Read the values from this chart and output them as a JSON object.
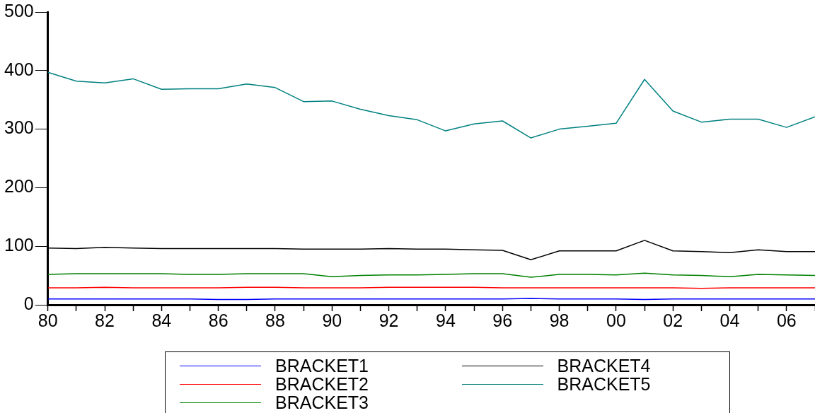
{
  "chart_data": {
    "type": "line",
    "categories": [
      "80",
      null,
      "82",
      null,
      "84",
      null,
      "86",
      null,
      "88",
      null,
      "90",
      null,
      "92",
      null,
      "94",
      null,
      "96",
      null,
      "98",
      null,
      "00",
      null,
      "02",
      null,
      "04",
      null,
      "06",
      null
    ],
    "series": [
      {
        "name": "BRACKET1",
        "color": "#0000ff",
        "values": [
          10,
          10,
          10,
          10,
          10,
          10,
          9,
          9,
          10,
          10,
          10,
          10,
          10,
          10,
          10,
          10,
          10,
          11,
          10,
          10,
          10,
          9,
          10,
          10,
          10,
          10,
          10,
          10
        ]
      },
      {
        "name": "BRACKET2",
        "color": "#ff0000",
        "values": [
          29,
          29,
          30,
          29,
          29,
          29,
          29,
          30,
          30,
          29,
          29,
          29,
          30,
          30,
          30,
          30,
          29,
          29,
          29,
          29,
          29,
          29,
          29,
          28,
          29,
          29,
          29,
          29
        ]
      },
      {
        "name": "BRACKET3",
        "color": "#008000",
        "values": [
          52,
          53,
          53,
          53,
          53,
          52,
          52,
          53,
          53,
          53,
          48,
          50,
          51,
          51,
          52,
          53,
          53,
          47,
          52,
          52,
          51,
          54,
          51,
          50,
          48,
          52,
          51,
          50
        ]
      },
      {
        "name": "BRACKET4",
        "color": "#000000",
        "values": [
          97,
          96,
          98,
          97,
          96,
          96,
          96,
          96,
          96,
          95,
          95,
          95,
          96,
          95,
          95,
          94,
          93,
          77,
          92,
          92,
          92,
          110,
          92,
          91,
          89,
          94,
          91,
          91
        ]
      },
      {
        "name": "BRACKET5",
        "color": "#008080",
        "values": [
          397,
          382,
          379,
          386,
          368,
          369,
          369,
          377,
          371,
          347,
          348,
          334,
          323,
          316,
          297,
          309,
          314,
          285,
          300,
          305,
          310,
          385,
          331,
          312,
          317,
          317,
          303,
          321
        ]
      }
    ],
    "ylim": [
      0,
      500
    ],
    "yticks": [
      0,
      100,
      200,
      300,
      400,
      500
    ],
    "grid": false,
    "legend": "bottom",
    "marker": "none",
    "line_style": "solid"
  }
}
